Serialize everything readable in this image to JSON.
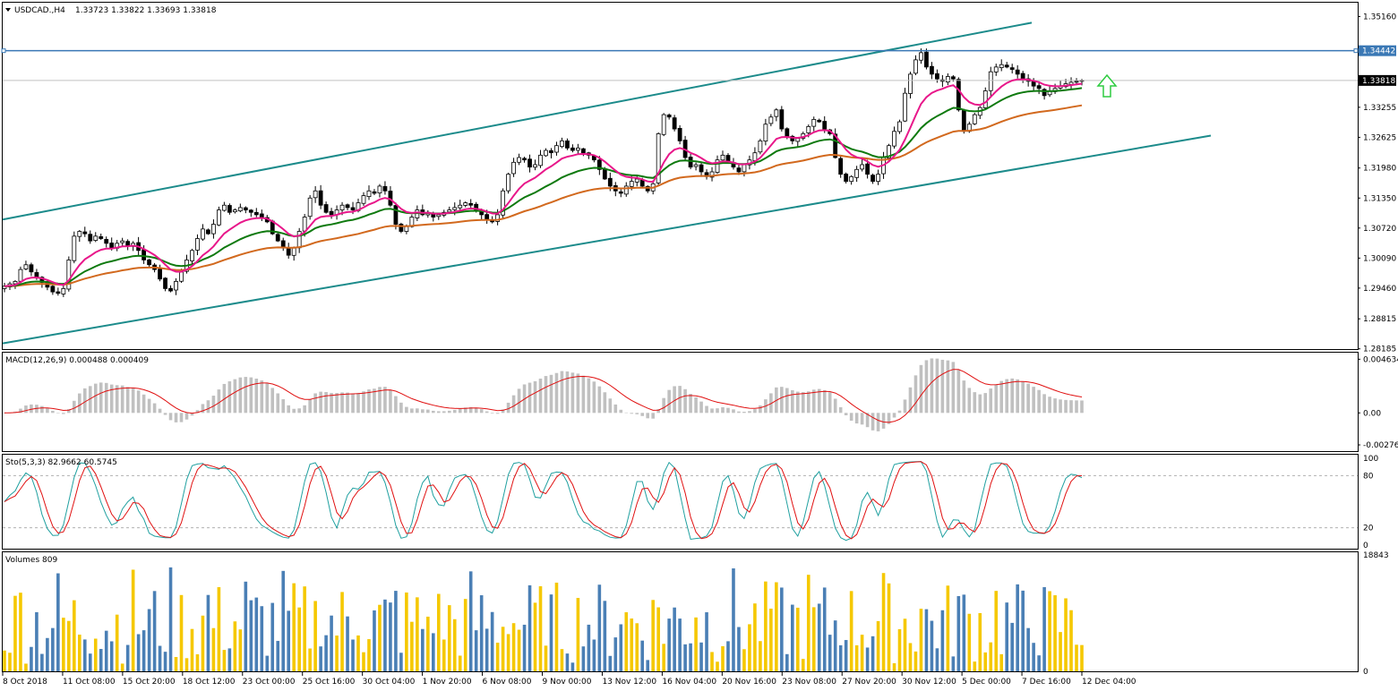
{
  "header": {
    "symbol": "USDCAD.,H4",
    "ohlc": "1.33723 1.33822 1.33693 1.33818"
  },
  "colors": {
    "candle": "#000000",
    "ema_fast": "#e8178a",
    "ema_mid": "#0f7a0f",
    "ema_slow": "#d2691e",
    "channel": "#1c8b8b",
    "hline": "#3a78b5",
    "macd_hist": "#c0c0c0",
    "macd_signal": "#e01010",
    "stoch_main": "#20a0a0",
    "stoch_signal": "#e01010",
    "vol_up": "#f5c800",
    "vol_down": "#4a7fb5",
    "arrow": "#2ecc40"
  },
  "chart_data": [
    {
      "type": "candlestick",
      "title": "USDCAD.,H4",
      "y_ticks": [
        "1.35160",
        "1.34442",
        "1.33818",
        "1.33255",
        "1.32625",
        "1.31980",
        "1.31350",
        "1.30720",
        "1.30090",
        "1.29460",
        "1.28815",
        "1.28185"
      ],
      "ylim": [
        1.2818,
        1.3545
      ],
      "x_ticks": [
        "8 Oct 2018",
        "11 Oct 08:00",
        "15 Oct 20:00",
        "18 Oct 12:00",
        "23 Oct 00:00",
        "25 Oct 16:00",
        "30 Oct 04:00",
        "1 Nov 20:00",
        "6 Nov 08:00",
        "9 Nov 00:00",
        "13 Nov 12:00",
        "16 Nov 04:00",
        "20 Nov 16:00",
        "23 Nov 08:00",
        "27 Nov 20:00",
        "30 Nov 12:00",
        "5 Dec 00:00",
        "7 Dec 16:00",
        "12 Dec 04:00"
      ],
      "closes": [
        1.295,
        1.2955,
        1.296,
        1.2985,
        1.2995,
        1.298,
        1.297,
        1.2958,
        1.2948,
        1.2938,
        1.2935,
        1.2945,
        1.3005,
        1.3055,
        1.3065,
        1.306,
        1.3045,
        1.3055,
        1.305,
        1.304,
        1.303,
        1.304,
        1.3045,
        1.3035,
        1.304,
        1.3025,
        1.3005,
        1.2995,
        1.2985,
        1.2965,
        1.2945,
        1.294,
        1.296,
        1.298,
        1.3005,
        1.3025,
        1.305,
        1.307,
        1.306,
        1.308,
        1.311,
        1.312,
        1.3105,
        1.311,
        1.3115,
        1.311,
        1.3105,
        1.31,
        1.3095,
        1.3085,
        1.306,
        1.3045,
        1.303,
        1.3015,
        1.303,
        1.3065,
        1.3095,
        1.3135,
        1.315,
        1.312,
        1.3105,
        1.31,
        1.311,
        1.312,
        1.3115,
        1.311,
        1.3125,
        1.314,
        1.315,
        1.3145,
        1.316,
        1.315,
        1.312,
        1.308,
        1.3065,
        1.3075,
        1.3095,
        1.311,
        1.31,
        1.3105,
        1.3095,
        1.31,
        1.3105,
        1.311,
        1.3115,
        1.312,
        1.3125,
        1.312,
        1.311,
        1.31,
        1.309,
        1.3085,
        1.31,
        1.315,
        1.3185,
        1.321,
        1.322,
        1.3215,
        1.32,
        1.3205,
        1.3225,
        1.3235,
        1.323,
        1.3245,
        1.3255,
        1.324,
        1.3235,
        1.324,
        1.323,
        1.3225,
        1.3215,
        1.3195,
        1.3175,
        1.316,
        1.315,
        1.3145,
        1.316,
        1.317,
        1.3175,
        1.316,
        1.315,
        1.3165,
        1.327,
        1.331,
        1.3305,
        1.328,
        1.3255,
        1.322,
        1.32,
        1.3205,
        1.319,
        1.318,
        1.319,
        1.3215,
        1.3225,
        1.321,
        1.32,
        1.319,
        1.3205,
        1.3215,
        1.323,
        1.3255,
        1.329,
        1.3305,
        1.332,
        1.328,
        1.3265,
        1.3255,
        1.326,
        1.327,
        1.3285,
        1.33,
        1.3295,
        1.328,
        1.327,
        1.322,
        1.3185,
        1.317,
        1.318,
        1.3195,
        1.3205,
        1.3185,
        1.317,
        1.3185,
        1.322,
        1.3245,
        1.3275,
        1.3295,
        1.3355,
        1.3395,
        1.3425,
        1.344,
        1.341,
        1.3395,
        1.3385,
        1.338,
        1.339,
        1.3385,
        1.332,
        1.3275,
        1.329,
        1.331,
        1.3325,
        1.336,
        1.34,
        1.341,
        1.3415,
        1.341,
        1.3405,
        1.3395,
        1.3385,
        1.338,
        1.337,
        1.3365,
        1.335,
        1.336,
        1.3365,
        1.337,
        1.3375,
        1.3378,
        1.338,
        1.3382
      ]
    },
    {
      "type": "histogram",
      "title": "MACD(12,26,9) 0.000488 0.000409",
      "y_ticks": [
        "0.004634",
        "0.00",
        "-0.002763"
      ],
      "ylim": [
        -0.0033,
        0.0052
      ]
    },
    {
      "type": "line",
      "title": "Sto(5,3,3) 82.9662 60.5745",
      "y_ticks": [
        "100",
        "80",
        "20",
        "0"
      ],
      "ylim": [
        0,
        100
      ]
    },
    {
      "type": "bar",
      "title": "Volumes 809",
      "y_ticks": [
        "18843",
        "0"
      ],
      "ylim": [
        0,
        18843
      ]
    }
  ]
}
